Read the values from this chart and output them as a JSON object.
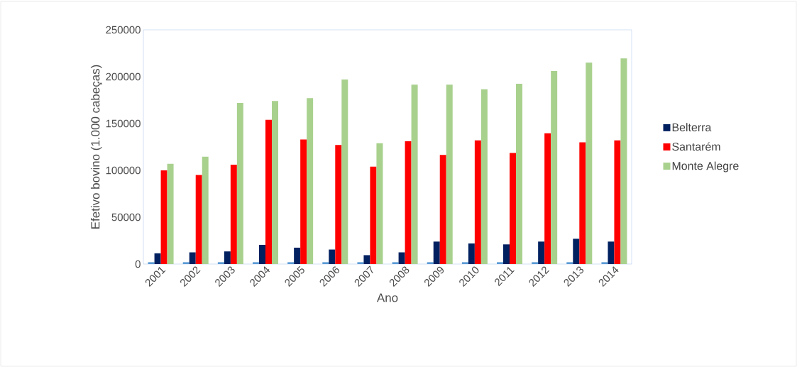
{
  "chart_data": {
    "type": "bar",
    "xlabel": "Ano",
    "ylabel": "Efetivo bovino (1.000 cabeças)",
    "categories": [
      "2001",
      "2002",
      "2003",
      "2004",
      "2005",
      "2006",
      "2007",
      "2008",
      "2009",
      "2010",
      "2011",
      "2012",
      "2013",
      "2014"
    ],
    "series": [
      {
        "color": "#5b9bd5",
        "values": [
          2000,
          2000,
          2000,
          2000,
          2000,
          2000,
          2000,
          2000,
          2000,
          2000,
          2000,
          2000,
          2000,
          2000
        ]
      },
      {
        "name": "Belterra",
        "color": "#002060",
        "values": [
          11500,
          12500,
          13500,
          20500,
          17500,
          15500,
          9500,
          12500,
          24000,
          22000,
          21000,
          24000,
          27000,
          24000
        ]
      },
      {
        "name": "Santarém",
        "color": "#ff0000",
        "values": [
          100000,
          95000,
          106000,
          154000,
          133000,
          127000,
          104000,
          131000,
          116500,
          132000,
          118500,
          139500,
          130000,
          132000
        ]
      },
      {
        "name": "Monte Alegre",
        "color": "#a9d18e",
        "values": [
          107000,
          114500,
          172000,
          174000,
          177000,
          197000,
          129000,
          191500,
          191500,
          186500,
          192500,
          206000,
          215000,
          219500
        ]
      }
    ],
    "ylim": [
      0,
      250000
    ],
    "yticks": [
      0,
      50000,
      100000,
      150000,
      200000,
      250000
    ],
    "legend": "right"
  }
}
